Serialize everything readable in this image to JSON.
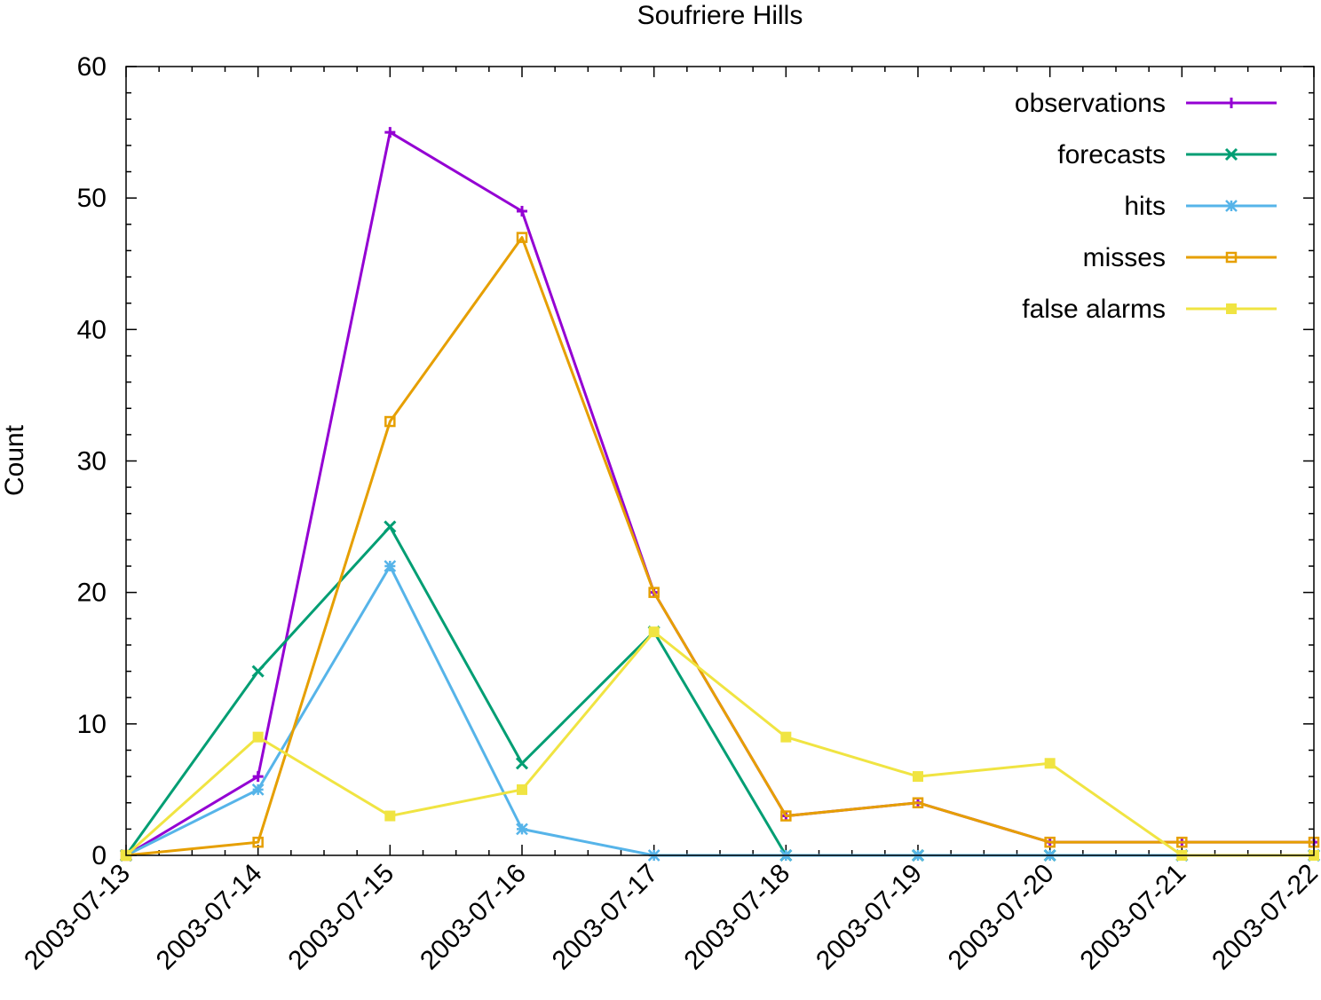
{
  "chart_data": {
    "type": "line",
    "title": "Soufriere Hills",
    "xlabel": "",
    "ylabel": "Count",
    "x": [
      "2003-07-13",
      "2003-07-14",
      "2003-07-15",
      "2003-07-16",
      "2003-07-17",
      "2003-07-18",
      "2003-07-19",
      "2003-07-20",
      "2003-07-21",
      "2003-07-22"
    ],
    "ylim": [
      0,
      60
    ],
    "yticks": [
      0,
      10,
      20,
      30,
      40,
      50,
      60
    ],
    "grid": false,
    "legend_position": "top-right",
    "series": [
      {
        "name": "observations",
        "color": "#9400d3",
        "marker": "plus",
        "values": [
          0,
          6,
          55,
          49,
          20,
          3,
          4,
          1,
          1,
          1
        ]
      },
      {
        "name": "forecasts",
        "color": "#009e73",
        "marker": "cross",
        "values": [
          0,
          14,
          25,
          7,
          17,
          0,
          0,
          0,
          0,
          0
        ]
      },
      {
        "name": "hits",
        "color": "#56b4e9",
        "marker": "star",
        "values": [
          0,
          5,
          22,
          2,
          0,
          0,
          0,
          0,
          0,
          0
        ]
      },
      {
        "name": "misses",
        "color": "#e69f00",
        "marker": "open-square",
        "values": [
          0,
          1,
          33,
          47,
          20,
          3,
          4,
          1,
          1,
          1
        ]
      },
      {
        "name": "false alarms",
        "color": "#f0e442",
        "marker": "filled-square",
        "values": [
          0,
          9,
          3,
          5,
          17,
          9,
          6,
          7,
          0,
          0
        ]
      }
    ]
  }
}
